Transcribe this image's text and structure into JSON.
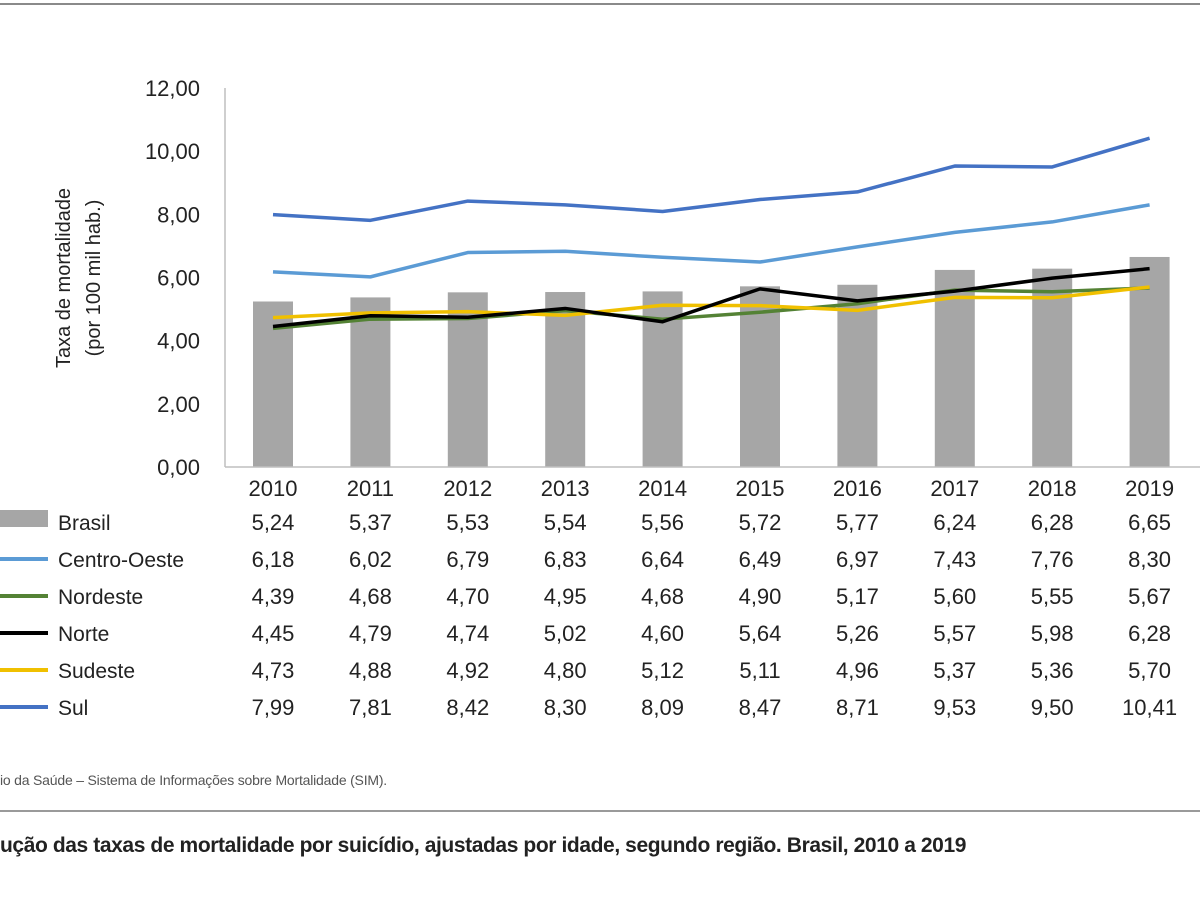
{
  "chart_data": {
    "type": "bar+line",
    "ylabel": [
      "Taxa de mortalidade",
      "(por 100 mil hab.)"
    ],
    "ylim": [
      0,
      12
    ],
    "y_ticks": [
      "0,00",
      "2,00",
      "4,00",
      "6,00",
      "8,00",
      "10,00",
      "12,00"
    ],
    "categories": [
      "2010",
      "2011",
      "2012",
      "2013",
      "2014",
      "2015",
      "2016",
      "2017",
      "2018",
      "2019"
    ],
    "grid": false,
    "legend_placement": "data table below chart",
    "series": [
      {
        "name": "Brasil",
        "kind": "bar",
        "color": "#a6a6a6",
        "values": [
          5.24,
          5.37,
          5.53,
          5.54,
          5.56,
          5.72,
          5.77,
          6.24,
          6.28,
          6.65
        ],
        "labels": [
          "5,24",
          "5,37",
          "5,53",
          "5,54",
          "5,56",
          "5,72",
          "5,77",
          "6,24",
          "6,28",
          "6,65"
        ]
      },
      {
        "name": "Centro-Oeste",
        "kind": "line",
        "color": "#5b9bd5",
        "values": [
          6.18,
          6.02,
          6.79,
          6.83,
          6.64,
          6.49,
          6.97,
          7.43,
          7.76,
          8.3
        ],
        "labels": [
          "6,18",
          "6,02",
          "6,79",
          "6,83",
          "6,64",
          "6,49",
          "6,97",
          "7,43",
          "7,76",
          "8,30"
        ]
      },
      {
        "name": "Nordeste",
        "kind": "line",
        "color": "#548235",
        "values": [
          4.39,
          4.68,
          4.7,
          4.95,
          4.68,
          4.9,
          5.17,
          5.6,
          5.55,
          5.67
        ],
        "labels": [
          "4,39",
          "4,68",
          "4,70",
          "4,95",
          "4,68",
          "4,90",
          "5,17",
          "5,60",
          "5,55",
          "5,67"
        ]
      },
      {
        "name": "Norte",
        "kind": "line",
        "color": "#000000",
        "values": [
          4.45,
          4.79,
          4.74,
          5.02,
          4.6,
          5.64,
          5.26,
          5.57,
          5.98,
          6.28
        ],
        "labels": [
          "4,45",
          "4,79",
          "4,74",
          "5,02",
          "4,60",
          "5,64",
          "5,26",
          "5,57",
          "5,98",
          "6,28"
        ]
      },
      {
        "name": "Sudeste",
        "kind": "line",
        "color": "#f0c000",
        "values": [
          4.73,
          4.88,
          4.92,
          4.8,
          5.12,
          5.11,
          4.96,
          5.37,
          5.36,
          5.7
        ],
        "labels": [
          "4,73",
          "4,88",
          "4,92",
          "4,80",
          "5,12",
          "5,11",
          "4,96",
          "5,37",
          "5,36",
          "5,70"
        ]
      },
      {
        "name": "Sul",
        "kind": "line",
        "color": "#4472c4",
        "values": [
          7.99,
          7.81,
          8.42,
          8.3,
          8.09,
          8.47,
          8.71,
          9.53,
          9.5,
          10.41
        ],
        "labels": [
          "7,99",
          "7,81",
          "8,42",
          "8,30",
          "8,09",
          "8,47",
          "8,71",
          "9,53",
          "9,50",
          "10,41"
        ]
      }
    ]
  },
  "source_text": "io da Saúde – Sistema de Informações sobre Mortalidade (SIM).",
  "caption_text": "ução das taxas de mortalidade por suicídio, ajustadas por idade, segundo região. Brasil, 2010 a 2019"
}
